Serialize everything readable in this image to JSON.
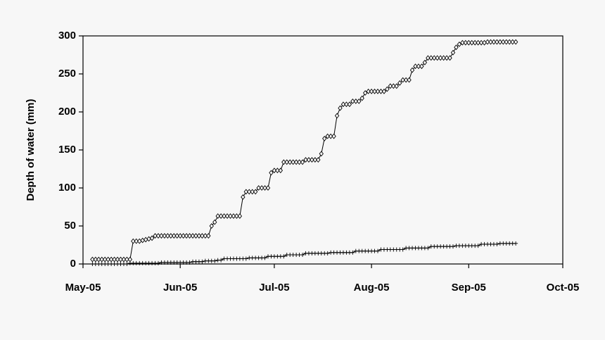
{
  "chart_data": {
    "type": "line",
    "ylabel": "Depth of water (mm)",
    "x": [
      3,
      4,
      5,
      6,
      7,
      8,
      9,
      10,
      11,
      12,
      13,
      14,
      15,
      16,
      17,
      18,
      19,
      20,
      21,
      22,
      23,
      24,
      25,
      26,
      27,
      28,
      29,
      30,
      31,
      32,
      33,
      34,
      35,
      36,
      37,
      38,
      39,
      40,
      41,
      42,
      43,
      44,
      45,
      46,
      47,
      48,
      49,
      50,
      51,
      52,
      53,
      54,
      55,
      56,
      57,
      58,
      59,
      60,
      61,
      62,
      63,
      64,
      65,
      66,
      67,
      68,
      69,
      70,
      71,
      72,
      73,
      74,
      75,
      76,
      77,
      78,
      79,
      80,
      81,
      82,
      83,
      84,
      85,
      86,
      87,
      88,
      89,
      90,
      91,
      92,
      93,
      94,
      95,
      96,
      97,
      98,
      99,
      100,
      101,
      102,
      103,
      104,
      105,
      106,
      107,
      108,
      109,
      110,
      111,
      112,
      113,
      114,
      115,
      116,
      117,
      118,
      119,
      120,
      121,
      122,
      123,
      124,
      125,
      126,
      127,
      128,
      129,
      130,
      131,
      132,
      133,
      134,
      135,
      136,
      137,
      138
    ],
    "series": [
      {
        "color": "#000000",
        "marker": "diamond",
        "values": [
          6,
          6,
          6,
          6,
          6,
          6,
          6,
          6,
          6,
          6,
          6,
          6,
          6,
          30,
          30,
          30,
          31,
          32,
          33,
          34,
          37,
          37,
          37,
          37,
          37,
          37,
          37,
          37,
          37,
          37,
          37,
          37,
          37,
          37,
          37,
          37,
          37,
          37,
          50,
          55,
          63,
          63,
          63,
          63,
          63,
          63,
          63,
          63,
          88,
          95,
          95,
          95,
          95,
          100,
          100,
          100,
          100,
          120,
          123,
          123,
          123,
          134,
          134,
          134,
          134,
          134,
          134,
          134,
          137,
          137,
          137,
          137,
          137,
          145,
          165,
          168,
          168,
          168,
          195,
          205,
          210,
          210,
          210,
          214,
          214,
          214,
          218,
          225,
          227,
          227,
          227,
          227,
          227,
          227,
          230,
          234,
          234,
          234,
          238,
          242,
          242,
          242,
          255,
          260,
          260,
          260,
          265,
          271,
          271,
          271,
          271,
          271,
          271,
          271,
          271,
          278,
          285,
          289,
          291,
          291,
          291,
          291,
          291,
          291,
          291,
          291,
          292,
          292,
          292,
          292,
          292,
          292,
          292,
          292,
          292,
          292
        ]
      },
      {
        "color": "#000000",
        "marker": "plus",
        "values": [
          0,
          0,
          0,
          0,
          0,
          0,
          0,
          0,
          0,
          0,
          0,
          0,
          1,
          1,
          1,
          1,
          1,
          1,
          1,
          1,
          1,
          1,
          2,
          2,
          2,
          2,
          2,
          2,
          2,
          2,
          2,
          2,
          3,
          3,
          3,
          3,
          4,
          4,
          4,
          4,
          5,
          5,
          7,
          7,
          7,
          7,
          7,
          7,
          7,
          7,
          8,
          8,
          8,
          8,
          8,
          8,
          10,
          10,
          10,
          10,
          10,
          10,
          12,
          12,
          12,
          12,
          12,
          12,
          14,
          14,
          14,
          14,
          14,
          14,
          14,
          14,
          15,
          15,
          15,
          15,
          15,
          15,
          15,
          15,
          17,
          17,
          17,
          17,
          17,
          17,
          17,
          17,
          19,
          19,
          19,
          19,
          19,
          19,
          19,
          19,
          21,
          21,
          21,
          21,
          21,
          21,
          21,
          21,
          23,
          23,
          23,
          23,
          23,
          23,
          23,
          23,
          24,
          24,
          24,
          24,
          24,
          24,
          24,
          24,
          26,
          26,
          26,
          26,
          26,
          26,
          27,
          27,
          27,
          27,
          27,
          27
        ]
      }
    ],
    "xlim": [
      0,
      153
    ],
    "xticks": [
      {
        "value": 0,
        "label": "May-05"
      },
      {
        "value": 31,
        "label": "Jun-05"
      },
      {
        "value": 61,
        "label": "Jul-05"
      },
      {
        "value": 92,
        "label": "Aug-05"
      },
      {
        "value": 123,
        "label": "Sep-05"
      },
      {
        "value": 153,
        "label": "Oct-05"
      }
    ],
    "ylim": [
      0,
      300
    ],
    "yticks": [
      0,
      50,
      100,
      150,
      200,
      250,
      300
    ]
  }
}
